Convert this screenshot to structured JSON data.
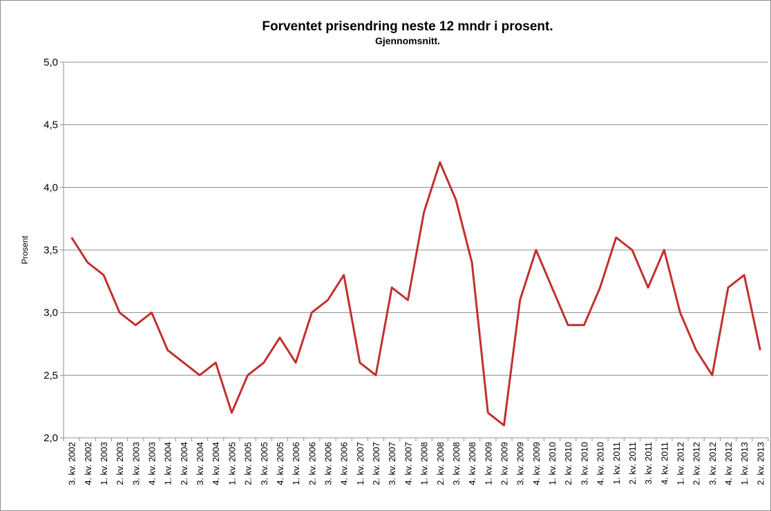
{
  "chart_data": {
    "type": "line",
    "title": "Forventet prisendring neste 12 mndr i prosent.",
    "subtitle": "Gjennomsnitt.",
    "y_label": "Prosent",
    "categories": [
      "3. kv. 2002",
      "4. kv. 2002",
      "1. kv. 2003",
      "2. kv. 2003",
      "3. kv. 2003",
      "4. kv. 2003",
      "1. kv. 2004",
      "2. kv. 2004",
      "3. kv. 2004",
      "4. kv. 2004",
      "1. kv. 2005",
      "2. kv. 2005",
      "3. kv. 2005",
      "4. kv. 2005",
      "1. kv. 2006",
      "2. kv. 2006",
      "3. kv. 2006",
      "4. kv. 2006",
      "1. kv. 2007",
      "2. kv. 2007",
      "3. kv. 2007",
      "4. kv. 2007",
      "1. kv. 2008",
      "2. kv. 2008",
      "3. kv. 2008",
      "4. kv. 2008",
      "1. kv. 2009",
      "2. kv. 2009",
      "3. kv. 2009",
      "4. kv. 2009",
      "1. kv. 2010",
      "2. kv. 2010",
      "3. kv. 2010",
      "4. kv. 2010",
      "1. kv. 2011",
      "2. kv. 2011",
      "3. kv. 2011",
      "4. kv. 2011",
      "1. kv. 2012",
      "2. kv. 2012",
      "3. kv. 2012",
      "4. kv. 2012",
      "1. kv. 2013",
      "2. kv. 2013"
    ],
    "values": [
      3.6,
      3.4,
      3.3,
      3.0,
      2.9,
      3.0,
      2.7,
      2.6,
      2.5,
      2.6,
      2.2,
      2.5,
      2.6,
      2.8,
      2.6,
      3.0,
      3.1,
      3.3,
      2.6,
      2.5,
      3.2,
      3.1,
      3.8,
      4.2,
      3.9,
      3.4,
      2.2,
      2.1,
      3.1,
      3.5,
      3.2,
      2.9,
      2.9,
      3.2,
      3.6,
      3.5,
      3.2,
      3.5,
      3.0,
      2.7,
      2.5,
      3.2,
      3.3,
      2.7
    ],
    "color": "#c0302d",
    "ylim": [
      2.0,
      5.0
    ],
    "yticks": [
      {
        "value": 2.0,
        "label": "2,0"
      },
      {
        "value": 2.5,
        "label": "2,5"
      },
      {
        "value": 3.0,
        "label": "3,0"
      },
      {
        "value": 3.5,
        "label": "3,5"
      },
      {
        "value": 4.0,
        "label": "4,0"
      },
      {
        "value": 4.5,
        "label": "4,5"
      },
      {
        "value": 5.0,
        "label": "5,0"
      }
    ],
    "grid": true
  }
}
